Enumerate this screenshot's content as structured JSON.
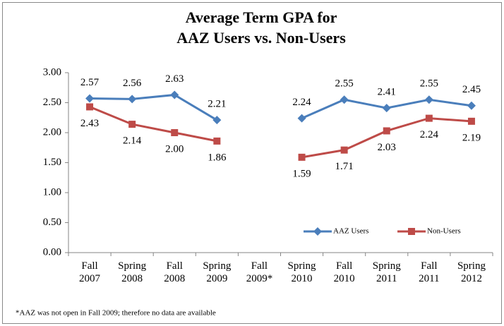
{
  "chart_data": {
    "type": "line",
    "title": [
      "Average Term GPA for",
      "AAZ Users vs. Non-Users"
    ],
    "categories": [
      "Fall 2007",
      "Spring 2008",
      "Fall 2008",
      "Spring 2009",
      "Fall 2009*",
      "Spring 2010",
      "Fall 2010",
      "Spring 2011",
      "Fall 2011",
      "Spring 2012"
    ],
    "series": [
      {
        "name": "AAZ Users",
        "color": "#4a7ebb",
        "marker": "diamond",
        "values": [
          2.57,
          2.56,
          2.63,
          2.21,
          null,
          2.24,
          2.55,
          2.41,
          2.55,
          2.45
        ],
        "value_labels": [
          "2.57",
          "2.56",
          "2.63",
          "2.21",
          null,
          "2.24",
          "2.55",
          "2.41",
          "2.55",
          "2.45"
        ]
      },
      {
        "name": "Non-Users",
        "color": "#be4b48",
        "marker": "square",
        "values": [
          2.43,
          2.14,
          2.0,
          1.86,
          null,
          1.59,
          1.71,
          2.03,
          2.24,
          2.19
        ],
        "value_labels": [
          "2.43",
          "2.14",
          "2.00",
          "1.86",
          null,
          "1.59",
          "1.71",
          "2.03",
          "2.24",
          "2.19"
        ]
      }
    ],
    "ylim": [
      0,
      3
    ],
    "yticks": [
      {
        "value": 0,
        "label": "0.00"
      },
      {
        "value": 0.5,
        "label": "0.50"
      },
      {
        "value": 1,
        "label": "1.00"
      },
      {
        "value": 1.5,
        "label": "1.50"
      },
      {
        "value": 2,
        "label": "2.00"
      },
      {
        "value": 2.5,
        "label": "2.50"
      },
      {
        "value": 3,
        "label": "3.00"
      }
    ],
    "grid": false,
    "legend": "bottom-right",
    "annotation": "*AAZ was not open in Fall 2009; therefore no data are available"
  }
}
